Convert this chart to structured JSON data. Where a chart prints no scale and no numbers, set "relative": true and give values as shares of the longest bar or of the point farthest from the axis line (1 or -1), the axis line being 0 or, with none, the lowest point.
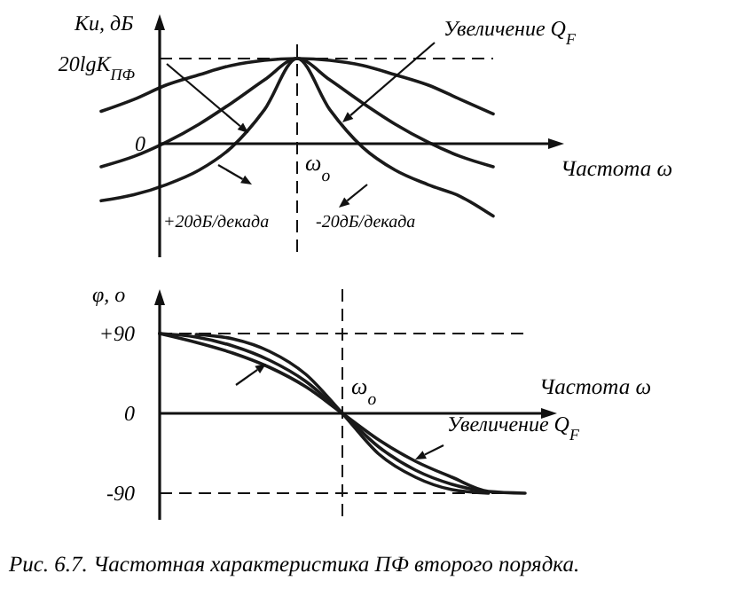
{
  "chart_data": [
    {
      "type": "line",
      "relative": true,
      "ylabel": "Ku, дБ",
      "xlabel": "Частота ω",
      "categories": [
        null,
        null,
        null,
        null,
        null,
        null,
        null,
        null,
        null,
        null,
        null,
        null,
        null
      ],
      "series": [
        {
          "color": "#1a1a1a",
          "values": [
            0.38,
            0.52,
            0.69,
            0.81,
            0.92,
            0.98,
            1,
            0.98,
            0.92,
            0.81,
            0.69,
            0.52,
            0.35
          ]
        },
        {
          "color": "#1a1a1a",
          "values": [
            -0.27,
            -0.15,
            0.02,
            0.23,
            0.48,
            0.75,
            1,
            0.75,
            0.48,
            0.23,
            0.02,
            -0.15,
            -0.27
          ]
        },
        {
          "color": "#1a1a1a",
          "values": [
            -0.67,
            -0.6,
            -0.48,
            -0.31,
            -0.04,
            0.4,
            1,
            0.4,
            -0.04,
            -0.31,
            -0.48,
            -0.62,
            -0.85
          ]
        }
      ],
      "annotations": [
        "0",
        "20lgK$_{ПФ}$",
        "ω$_{o}$",
        "Увеличение Q$_{F}$",
        "+20дБ/декада",
        "-20дБ/декада"
      ]
    },
    {
      "type": "line",
      "ylabel": "φ, o",
      "xlabel": "Частота ω",
      "categories": [
        null,
        null,
        null,
        null,
        null,
        null,
        null,
        null,
        null,
        null,
        null
      ],
      "ylim": [
        -120,
        140
      ],
      "yticks": [
        {
          "value": 90,
          "label": "+90"
        },
        0,
        {
          "value": -90,
          "label": "-90"
        }
      ],
      "series": [
        {
          "color": "#1a1a1a",
          "values": [
            90,
            80,
            68,
            52,
            30,
            0,
            -30,
            -54,
            -72,
            -88,
            -90
          ]
        },
        {
          "color": "#1a1a1a",
          "values": [
            90,
            86,
            76,
            60,
            36,
            0,
            -38,
            -64,
            -80,
            -89,
            null
          ]
        },
        {
          "color": "#1a1a1a",
          "values": [
            null,
            89,
            84,
            70,
            44,
            0,
            -46,
            -72,
            -86,
            -90,
            null
          ]
        }
      ],
      "ref_lines": [
        {
          "axis": "y",
          "value": 90,
          "line_style": "dashed"
        },
        {
          "axis": "y",
          "value": -90,
          "line_style": "dashed"
        }
      ],
      "annotations": [
        "ω$_{o}$",
        "Увеличение Q$_{F}$",
        "Рис. 6.7. Частотная характеристика ПФ второго порядка."
      ]
    }
  ]
}
